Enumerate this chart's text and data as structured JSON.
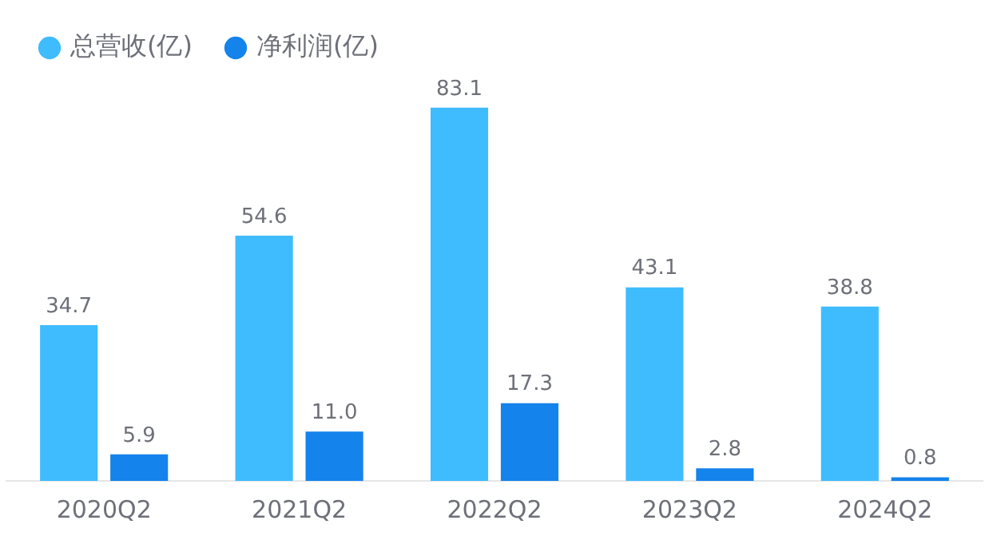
{
  "chart_data": {
    "type": "bar",
    "categories": [
      "2020Q2",
      "2021Q2",
      "2022Q2",
      "2023Q2",
      "2024Q2"
    ],
    "series": [
      {
        "name": "总营收(亿)",
        "color": "#3fbcfe",
        "values": [
          34.7,
          54.6,
          83.1,
          43.1,
          38.8
        ],
        "value_labels": [
          "34.7",
          "54.6",
          "83.1",
          "43.1",
          "38.8"
        ]
      },
      {
        "name": "净利润(亿)",
        "color": "#1483eb",
        "values": [
          5.9,
          11.0,
          17.3,
          2.8,
          0.8
        ],
        "value_labels": [
          "5.9",
          "11.0",
          "17.3",
          "2.8",
          "0.8"
        ]
      }
    ],
    "grid": false,
    "legend": "top left",
    "tick_labels": "x"
  }
}
